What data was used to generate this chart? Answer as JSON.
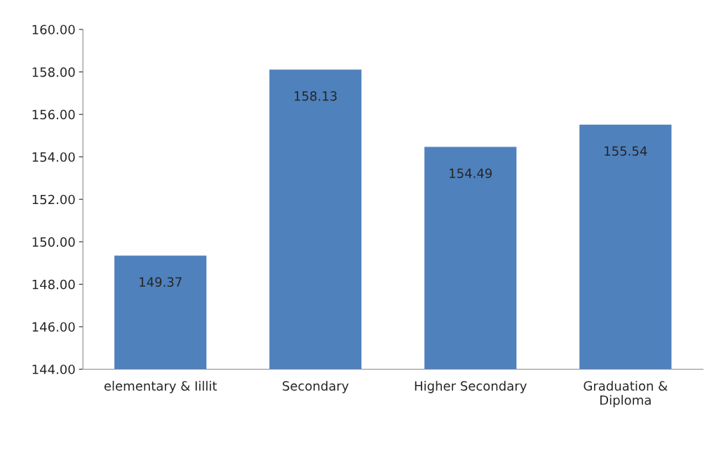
{
  "chart_data": {
    "type": "bar",
    "categories": [
      "elementary & Iillit",
      "Secondary",
      "Higher Secondary",
      "Graduation &\nDiploma"
    ],
    "values": [
      149.37,
      158.13,
      154.49,
      155.54
    ],
    "color": "#4f81bd",
    "ylim": [
      144,
      160
    ],
    "yticks": [
      {
        "value": 144,
        "label": "144.00"
      },
      {
        "value": 146,
        "label": "146.00"
      },
      {
        "value": 148,
        "label": "148.00"
      },
      {
        "value": 150,
        "label": "150.00"
      },
      {
        "value": 152,
        "label": "152.00"
      },
      {
        "value": 154,
        "label": "154.00"
      },
      {
        "value": 156,
        "label": "156.00"
      },
      {
        "value": 158,
        "label": "158.00"
      },
      {
        "value": 160,
        "label": "160.00"
      }
    ],
    "data_labels": true,
    "grid": false,
    "legend": false
  }
}
